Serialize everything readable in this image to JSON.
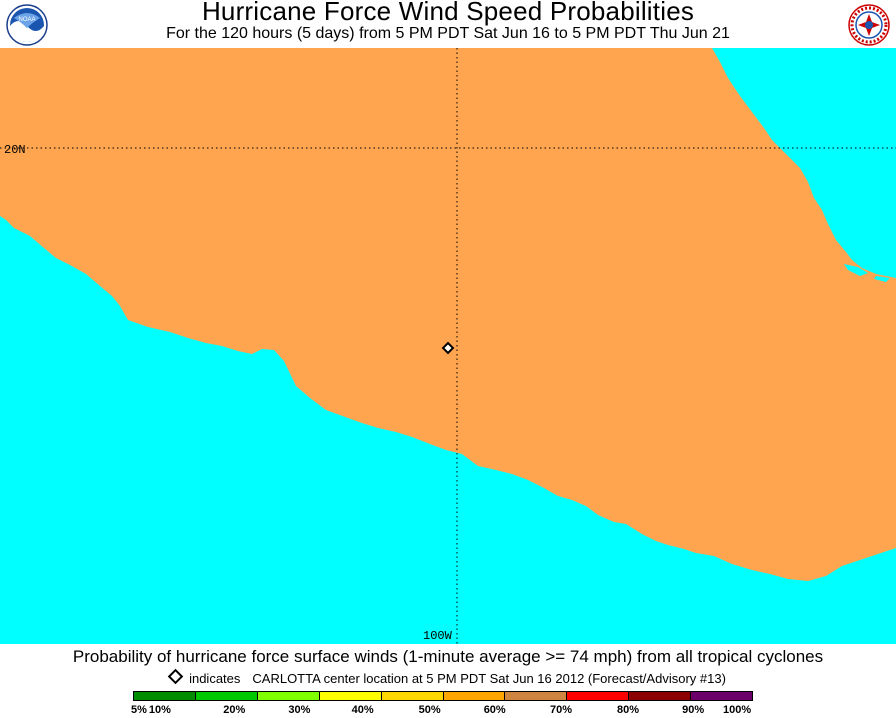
{
  "header": {
    "title": "Hurricane Force Wind Speed Probabilities",
    "subtitle": "For the 120 hours (5 days) from 5 PM PDT Sat Jun 16 to 5 PM PDT Thu Jun 21",
    "left_logo": {
      "icon": "noaa-logo-icon",
      "text": "NOAA"
    },
    "right_logo": {
      "icon": "nws-logo-icon",
      "text": "NATIONAL WEATHER SERVICE"
    }
  },
  "map": {
    "colors": {
      "water": "#00ffff",
      "land": "#ffa550",
      "grid": "#000000"
    },
    "grid_labels": {
      "lat": "20N",
      "lon": "100W"
    },
    "storm_marker": {
      "icon": "diamond-icon",
      "name": "CARLOTTA"
    }
  },
  "footer": {
    "caption": "Probability of hurricane force surface winds (1-minute average >= 74 mph) from all tropical cyclones",
    "indicator": {
      "icon": "diamond-icon",
      "label": "indicates",
      "text": "CARLOTTA center location at 5 PM PDT Sat Jun 16 2012 (Forecast/Advisory #13)"
    },
    "scale": {
      "colors": [
        "#008b00",
        "#00c800",
        "#7fff00",
        "#ffff00",
        "#ffd700",
        "#ffa500",
        "#cd853f",
        "#ff0000",
        "#8b0000",
        "#6b006b",
        "#8b008b"
      ],
      "labels": [
        "5%",
        "10%",
        "20%",
        "30%",
        "40%",
        "50%",
        "60%",
        "70%",
        "80%",
        "90%",
        "100%"
      ]
    }
  }
}
